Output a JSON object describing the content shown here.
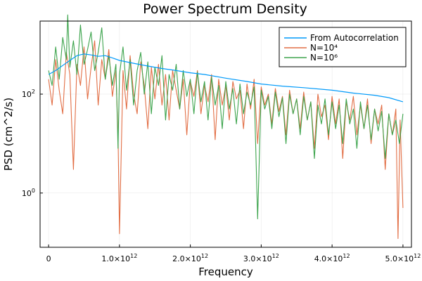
{
  "chart_data": {
    "type": "line",
    "title": "Power Spectrum Density",
    "xlabel": "Frequency",
    "ylabel": "PSD (cm^2/s)",
    "xlim": [
      -120000000000.0,
      5120000000000.0
    ],
    "yscale": "log10",
    "ylim": [
      0.08,
      3000
    ],
    "grid": true,
    "legend_position": "top-right",
    "x_ticks": [
      {
        "value": 0,
        "label": "0"
      },
      {
        "value": 1000000000000.0,
        "label": "1.0×10",
        "exp": "12"
      },
      {
        "value": 2000000000000.0,
        "label": "2.0×10",
        "exp": "12"
      },
      {
        "value": 3000000000000.0,
        "label": "3.0×10",
        "exp": "12"
      },
      {
        "value": 4000000000000.0,
        "label": "4.0×10",
        "exp": "12"
      },
      {
        "value": 5000000000000.0,
        "label": "5.0×10",
        "exp": "12"
      }
    ],
    "y_ticks": [
      {
        "value": 1,
        "label": "10",
        "exp": "0"
      },
      {
        "value": 100,
        "label": "10",
        "exp": "2"
      }
    ],
    "series": [
      {
        "name": "From Autocorrelation",
        "color": "#009AFA",
        "x": [
          0,
          100000000000.0,
          200000000000.0,
          300000000000.0,
          400000000000.0,
          500000000000.0,
          600000000000.0,
          700000000000.0,
          800000000000.0,
          900000000000.0,
          1000000000000.0,
          1200000000000.0,
          1400000000000.0,
          1600000000000.0,
          1800000000000.0,
          2000000000000.0,
          2200000000000.0,
          2500000000000.0,
          2800000000000.0,
          3000000000000.0,
          3300000000000.0,
          3600000000000.0,
          4000000000000.0,
          4300000000000.0,
          4600000000000.0,
          4800000000000.0,
          5000000000000.0
        ],
        "values": [
          250,
          300,
          380,
          480,
          600,
          650,
          620,
          580,
          600,
          540,
          480,
          420,
          370,
          330,
          300,
          270,
          250,
          210,
          180,
          160,
          145,
          135,
          120,
          105,
          95,
          85,
          70
        ]
      },
      {
        "name": "N=10⁴",
        "color": "#E26F46",
        "x": [
          0,
          50000000000.0,
          100000000000.0,
          150000000000.0,
          200000000000.0,
          250000000000.0,
          300000000000.0,
          350000000000.0,
          400000000000.0,
          450000000000.0,
          500000000000.0,
          550000000000.0,
          600000000000.0,
          650000000000.0,
          700000000000.0,
          750000000000.0,
          800000000000.0,
          850000000000.0,
          900000000000.0,
          950000000000.0,
          980000000000.0,
          1000000000000.0,
          1050000000000.0,
          1100000000000.0,
          1150000000000.0,
          1200000000000.0,
          1250000000000.0,
          1300000000000.0,
          1350000000000.0,
          1400000000000.0,
          1450000000000.0,
          1500000000000.0,
          1550000000000.0,
          1600000000000.0,
          1650000000000.0,
          1700000000000.0,
          1750000000000.0,
          1800000000000.0,
          1850000000000.0,
          1900000000000.0,
          1950000000000.0,
          2000000000000.0,
          2050000000000.0,
          2100000000000.0,
          2150000000000.0,
          2200000000000.0,
          2250000000000.0,
          2300000000000.0,
          2350000000000.0,
          2400000000000.0,
          2450000000000.0,
          2500000000000.0,
          2550000000000.0,
          2600000000000.0,
          2650000000000.0,
          2700000000000.0,
          2750000000000.0,
          2800000000000.0,
          2850000000000.0,
          2900000000000.0,
          2950000000000.0,
          3000000000000.0,
          3050000000000.0,
          3100000000000.0,
          3150000000000.0,
          3200000000000.0,
          3250000000000.0,
          3300000000000.0,
          3350000000000.0,
          3400000000000.0,
          3450000000000.0,
          3500000000000.0,
          3550000000000.0,
          3600000000000.0,
          3650000000000.0,
          3700000000000.0,
          3750000000000.0,
          3800000000000.0,
          3850000000000.0,
          3900000000000.0,
          3950000000000.0,
          4000000000000.0,
          4050000000000.0,
          4100000000000.0,
          4150000000000.0,
          4200000000000.0,
          4250000000000.0,
          4300000000000.0,
          4350000000000.0,
          4400000000000.0,
          4450000000000.0,
          4500000000000.0,
          4550000000000.0,
          4600000000000.0,
          4650000000000.0,
          4700000000000.0,
          4750000000000.0,
          4800000000000.0,
          4850000000000.0,
          4900000000000.0,
          4930000000000.0,
          4960000000000.0,
          5000000000000.0
        ],
        "values": [
          200,
          60,
          500,
          120,
          40,
          700,
          250,
          3,
          400,
          150,
          900,
          80,
          350,
          1200,
          60,
          500,
          200,
          800,
          90,
          300,
          15,
          0.15,
          300,
          50,
          600,
          100,
          40,
          450,
          150,
          20,
          350,
          80,
          400,
          60,
          250,
          30,
          300,
          120,
          50,
          200,
          15,
          180,
          90,
          300,
          40,
          150,
          70,
          250,
          12,
          200,
          60,
          150,
          30,
          180,
          80,
          120,
          20,
          160,
          50,
          200,
          10,
          140,
          60,
          100,
          25,
          130,
          45,
          90,
          15,
          120,
          40,
          80,
          20,
          110,
          30,
          70,
          8,
          100,
          35,
          60,
          12,
          90,
          25,
          80,
          5,
          70,
          30,
          90,
          15,
          60,
          20,
          80,
          10,
          50,
          25,
          60,
          3,
          40,
          15,
          50,
          0.12,
          30,
          0.5
        ]
      },
      {
        "name": "N=10⁶",
        "color": "#3DA44D",
        "x": [
          0,
          50000000000.0,
          100000000000.0,
          150000000000.0,
          200000000000.0,
          250000000000.0,
          270000000000.0,
          300000000000.0,
          350000000000.0,
          400000000000.0,
          450000000000.0,
          500000000000.0,
          550000000000.0,
          600000000000.0,
          650000000000.0,
          700000000000.0,
          750000000000.0,
          800000000000.0,
          850000000000.0,
          900000000000.0,
          950000000000.0,
          980000000000.0,
          1000000000000.0,
          1050000000000.0,
          1100000000000.0,
          1150000000000.0,
          1200000000000.0,
          1250000000000.0,
          1300000000000.0,
          1350000000000.0,
          1400000000000.0,
          1450000000000.0,
          1500000000000.0,
          1550000000000.0,
          1600000000000.0,
          1650000000000.0,
          1700000000000.0,
          1750000000000.0,
          1800000000000.0,
          1850000000000.0,
          1900000000000.0,
          1950000000000.0,
          2000000000000.0,
          2050000000000.0,
          2100000000000.0,
          2150000000000.0,
          2200000000000.0,
          2250000000000.0,
          2300000000000.0,
          2350000000000.0,
          2400000000000.0,
          2450000000000.0,
          2500000000000.0,
          2550000000000.0,
          2600000000000.0,
          2650000000000.0,
          2700000000000.0,
          2750000000000.0,
          2800000000000.0,
          2850000000000.0,
          2900000000000.0,
          2950000000000.0,
          3000000000000.0,
          3050000000000.0,
          3100000000000.0,
          3150000000000.0,
          3200000000000.0,
          3250000000000.0,
          3300000000000.0,
          3350000000000.0,
          3400000000000.0,
          3450000000000.0,
          3500000000000.0,
          3550000000000.0,
          3600000000000.0,
          3650000000000.0,
          3700000000000.0,
          3750000000000.0,
          3800000000000.0,
          3850000000000.0,
          3900000000000.0,
          3950000000000.0,
          4000000000000.0,
          4050000000000.0,
          4100000000000.0,
          4150000000000.0,
          4200000000000.0,
          4250000000000.0,
          4300000000000.0,
          4350000000000.0,
          4400000000000.0,
          4450000000000.0,
          4500000000000.0,
          4550000000000.0,
          4600000000000.0,
          4650000000000.0,
          4700000000000.0,
          4750000000000.0,
          4800000000000.0,
          4850000000000.0,
          4900000000000.0,
          4950000000000.0,
          5000000000000.0
        ],
        "values": [
          300,
          150,
          900,
          200,
          1400,
          500,
          4000,
          350,
          1200,
          250,
          2500,
          400,
          800,
          1800,
          300,
          700,
          2200,
          200,
          600,
          150,
          400,
          8,
          250,
          900,
          120,
          500,
          60,
          300,
          700,
          100,
          450,
          40,
          350,
          150,
          600,
          30,
          250,
          120,
          400,
          50,
          300,
          90,
          200,
          40,
          280,
          70,
          180,
          30,
          220,
          60,
          150,
          20,
          180,
          50,
          130,
          25,
          160,
          40,
          110,
          60,
          140,
          0.3,
          120,
          50,
          90,
          20,
          110,
          35,
          85,
          10,
          100,
          40,
          80,
          15,
          90,
          30,
          70,
          5,
          60,
          25,
          80,
          15,
          70,
          20,
          60,
          10,
          80,
          25,
          50,
          8,
          70,
          20,
          60,
          12,
          50,
          18,
          45,
          5,
          40,
          15,
          30,
          10,
          40
        ]
      }
    ]
  }
}
